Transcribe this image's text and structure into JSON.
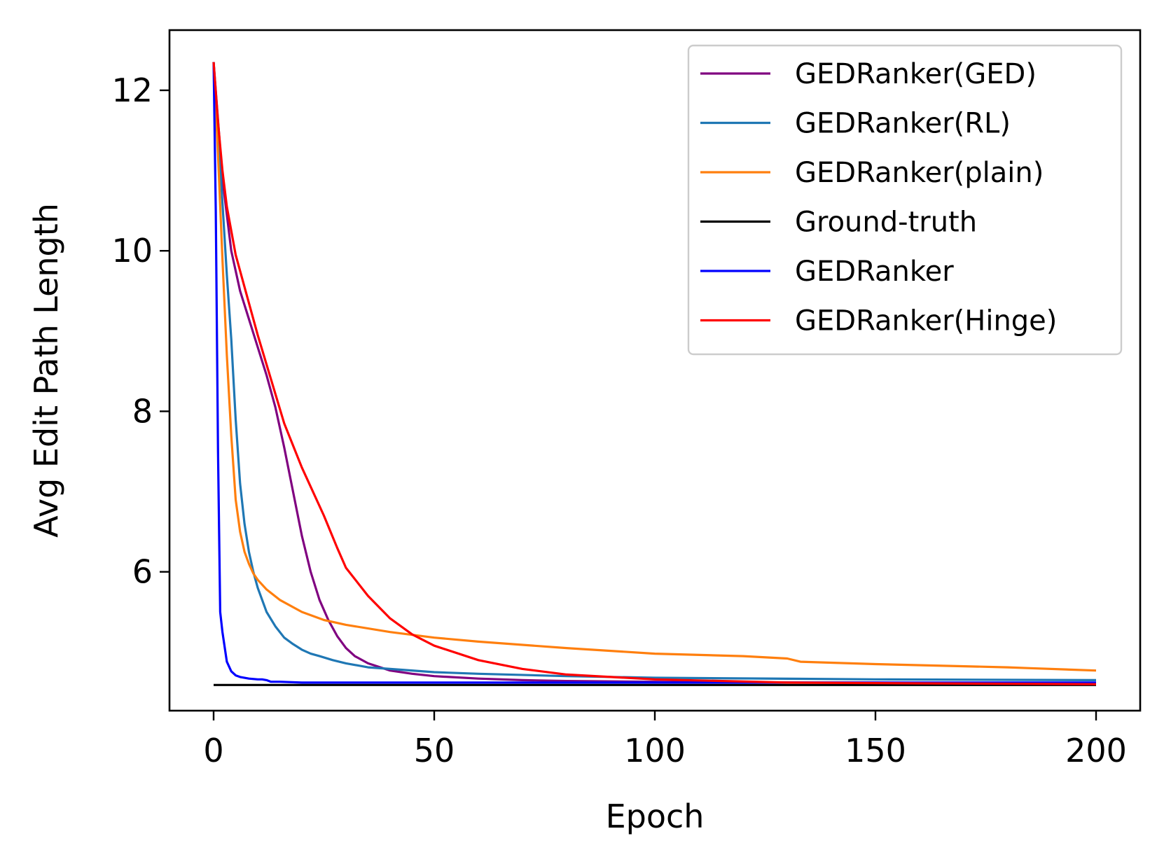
{
  "chart_data": {
    "type": "line",
    "xlabel": "Epoch",
    "ylabel": "Avg Edit Path Length",
    "xlim": [
      -10,
      210
    ],
    "ylim": [
      4.27,
      12.75
    ],
    "xticks": [
      0,
      50,
      100,
      150,
      200
    ],
    "yticks": [
      6,
      8,
      10,
      12
    ],
    "grid": false,
    "legend_position": "top-right",
    "series": [
      {
        "name": "GEDRanker(GED)",
        "color": "#800080",
        "x": [
          0,
          2,
          4,
          6,
          8,
          10,
          12,
          14,
          16,
          18,
          20,
          22,
          24,
          26,
          28,
          30,
          32,
          35,
          40,
          45,
          50,
          60,
          70,
          80,
          100,
          120,
          150,
          200
        ],
        "y": [
          12.35,
          10.9,
          10.0,
          9.5,
          9.15,
          8.8,
          8.45,
          8.05,
          7.55,
          7.0,
          6.45,
          6.0,
          5.65,
          5.4,
          5.2,
          5.05,
          4.95,
          4.86,
          4.77,
          4.73,
          4.7,
          4.67,
          4.65,
          4.64,
          4.63,
          4.62,
          4.62,
          4.61
        ]
      },
      {
        "name": "GEDRanker(RL)",
        "color": "#1f77b4",
        "x": [
          0,
          1,
          2,
          3,
          4,
          5,
          6,
          7,
          8,
          9,
          10,
          12,
          14,
          16,
          18,
          20,
          22,
          24,
          27,
          30,
          35,
          40,
          50,
          60,
          80,
          100,
          150,
          200
        ],
        "y": [
          12.35,
          11.5,
          10.6,
          9.7,
          8.9,
          7.9,
          7.1,
          6.6,
          6.25,
          6.0,
          5.8,
          5.5,
          5.32,
          5.18,
          5.1,
          5.03,
          4.98,
          4.95,
          4.9,
          4.86,
          4.81,
          4.79,
          4.75,
          4.73,
          4.7,
          4.68,
          4.66,
          4.65
        ]
      },
      {
        "name": "GEDRanker(plain)",
        "color": "#ff7f0e",
        "x": [
          0,
          1,
          2,
          3,
          4,
          5,
          6,
          7,
          8,
          9,
          10,
          12,
          15,
          20,
          25,
          30,
          40,
          50,
          60,
          80,
          100,
          120,
          130,
          133,
          150,
          180,
          185,
          200
        ],
        "y": [
          12.35,
          11.2,
          9.9,
          8.7,
          7.7,
          6.9,
          6.5,
          6.25,
          6.1,
          5.98,
          5.9,
          5.78,
          5.65,
          5.5,
          5.4,
          5.34,
          5.25,
          5.18,
          5.13,
          5.05,
          4.98,
          4.95,
          4.92,
          4.88,
          4.85,
          4.81,
          4.8,
          4.77
        ]
      },
      {
        "name": "Ground-truth",
        "color": "#000000",
        "x": [
          0,
          200
        ],
        "y": [
          4.59,
          4.59
        ]
      },
      {
        "name": "GEDRanker",
        "color": "#0000ff",
        "x": [
          0,
          0.5,
          1,
          1.5,
          2,
          3,
          4,
          5,
          6,
          8,
          10,
          11,
          12,
          13,
          15,
          20,
          30,
          50,
          100,
          200
        ],
        "y": [
          12.35,
          10.5,
          7.5,
          5.5,
          5.25,
          4.88,
          4.76,
          4.71,
          4.69,
          4.67,
          4.66,
          4.66,
          4.65,
          4.63,
          4.63,
          4.62,
          4.62,
          4.62,
          4.62,
          4.62
        ]
      },
      {
        "name": "GEDRanker(Hinge)",
        "color": "#ff0000",
        "x": [
          0,
          1,
          2,
          3,
          4,
          5,
          7,
          10,
          13,
          16,
          20,
          25,
          28,
          30,
          35,
          40,
          45,
          50,
          60,
          70,
          80,
          100,
          130,
          160,
          200
        ],
        "y": [
          12.35,
          11.6,
          11.0,
          10.55,
          10.25,
          9.95,
          9.55,
          8.95,
          8.4,
          7.85,
          7.3,
          6.7,
          6.3,
          6.05,
          5.7,
          5.42,
          5.22,
          5.08,
          4.9,
          4.79,
          4.72,
          4.66,
          4.62,
          4.61,
          4.6
        ]
      }
    ]
  }
}
